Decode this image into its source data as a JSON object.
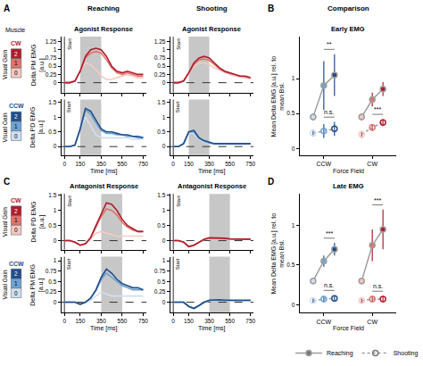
{
  "header": {
    "muscle": "Muscle",
    "columns": [
      "Reaching",
      "Shooting"
    ],
    "comparison": "Comparison"
  },
  "visual_gain": {
    "title": "Visual Gain",
    "levels": [
      2,
      1,
      0
    ]
  },
  "force_fields": {
    "CW": [
      "#f3c9c3",
      "#e0736a",
      "#b01c2e"
    ],
    "CCW": [
      "#cfe0f1",
      "#6fa3d3",
      "#1f4e8c"
    ]
  },
  "chart_data": [
    {
      "type": "line",
      "panel": "A",
      "title": "Agonist Response",
      "force_field": "CW",
      "y_label": "Delta PM EMG [a.u.]",
      "tick_labels": "y",
      "x": [
        0,
        50,
        100,
        150,
        200,
        250,
        300,
        350,
        400,
        450,
        500,
        550,
        600,
        650,
        700,
        750
      ],
      "xlim": [
        -30,
        780
      ],
      "xticks": [
        0,
        150,
        350,
        550,
        750
      ],
      "ylim": [
        -0.3,
        1.4
      ],
      "yticks": [
        0,
        0.25,
        0.5,
        0.75,
        1,
        1.25
      ],
      "window": [
        150,
        350
      ],
      "start": {
        "x": 0,
        "label": "Start"
      },
      "series": [
        {
          "gain": 0,
          "values": [
            0,
            0,
            0.05,
            0.35,
            0.6,
            0.55,
            0.4,
            0.2,
            0.1,
            0.1,
            0.15,
            0.2,
            0.25,
            0.2,
            0.15,
            0.15
          ]
        },
        {
          "gain": 1,
          "values": [
            0,
            0,
            0.05,
            0.35,
            0.75,
            0.9,
            0.95,
            0.9,
            0.7,
            0.45,
            0.3,
            0.25,
            0.3,
            0.25,
            0.2,
            0.2
          ]
        },
        {
          "gain": 2,
          "values": [
            0,
            0,
            0.05,
            0.35,
            0.8,
            1.0,
            1.05,
            1.0,
            0.8,
            0.5,
            0.35,
            0.3,
            0.35,
            0.3,
            0.25,
            0.25
          ]
        }
      ]
    },
    {
      "type": "line",
      "title": "Agonist Response",
      "force_field": "CW",
      "tick_labels": "y",
      "x": [
        0,
        50,
        100,
        150,
        200,
        250,
        300,
        350,
        400,
        450,
        500,
        550,
        600,
        650,
        700,
        750
      ],
      "xlim": [
        -30,
        780
      ],
      "xticks": [
        0,
        150,
        350,
        550,
        750
      ],
      "ylim": [
        -0.3,
        1.4
      ],
      "yticks": [
        0,
        0.25,
        0.5,
        0.75,
        1,
        1.25
      ],
      "window": [
        150,
        350
      ],
      "start": {
        "x": 0,
        "label": "Start"
      },
      "series": [
        {
          "gain": 0,
          "values": [
            0,
            0,
            0.05,
            0.3,
            0.5,
            0.6,
            0.6,
            0.55,
            0.45,
            0.38,
            0.3,
            0.25,
            0.2,
            0.18,
            0.15,
            0.12
          ]
        },
        {
          "gain": 1,
          "values": [
            0,
            0,
            0.05,
            0.3,
            0.55,
            0.7,
            0.72,
            0.68,
            0.55,
            0.42,
            0.33,
            0.28,
            0.23,
            0.2,
            0.18,
            0.15
          ]
        },
        {
          "gain": 2,
          "values": [
            0,
            0,
            0.05,
            0.3,
            0.6,
            0.75,
            0.8,
            0.75,
            0.6,
            0.45,
            0.35,
            0.3,
            0.25,
            0.2,
            0.2,
            0.15
          ]
        }
      ]
    },
    {
      "type": "line",
      "force_field": "CCW",
      "y_label": "Delta PD EMG [a.u.]",
      "x_label": "Time [ms]",
      "x": [
        0,
        50,
        100,
        150,
        200,
        250,
        300,
        350,
        400,
        450,
        500,
        550,
        600,
        650,
        700,
        750
      ],
      "xlim": [
        -30,
        780
      ],
      "xticks": [
        0,
        150,
        350,
        550,
        750
      ],
      "ylim": [
        -0.3,
        1.6
      ],
      "yticks": [
        0,
        0.5,
        1,
        1.5
      ],
      "window": [
        150,
        350
      ],
      "start": {
        "x": 0,
        "label": "Start"
      },
      "series": [
        {
          "gain": 0,
          "values": [
            0,
            0,
            0.05,
            0.6,
            1.0,
            0.7,
            0.4,
            0.3,
            0.3,
            0.3,
            0.3,
            0.3,
            0.3,
            0.25,
            0.25,
            0.25
          ]
        },
        {
          "gain": 1,
          "values": [
            0,
            0,
            0.05,
            0.6,
            1.25,
            1.1,
            0.8,
            0.55,
            0.45,
            0.45,
            0.4,
            0.4,
            0.35,
            0.35,
            0.3,
            0.3
          ]
        },
        {
          "gain": 2,
          "values": [
            0,
            0,
            0.05,
            0.6,
            1.3,
            1.2,
            0.9,
            0.6,
            0.5,
            0.5,
            0.45,
            0.4,
            0.4,
            0.35,
            0.35,
            0.3
          ]
        }
      ]
    },
    {
      "type": "line",
      "force_field": "CCW",
      "x_label": "Time [ms]",
      "x": [
        0,
        50,
        100,
        150,
        200,
        250,
        300,
        350,
        400,
        450,
        500,
        550,
        600,
        650,
        700,
        750
      ],
      "xlim": [
        -30,
        780
      ],
      "xticks": [
        0,
        150,
        350,
        550,
        750
      ],
      "ylim": [
        -0.3,
        1.6
      ],
      "yticks": [
        0,
        0.5,
        1,
        1.5
      ],
      "window": [
        150,
        350
      ],
      "start": {
        "x": 0,
        "label": "Start"
      },
      "series": [
        {
          "gain": 0,
          "values": [
            0,
            0,
            0.1,
            0.48,
            0.45,
            0.25,
            0.15,
            0.1,
            0.08,
            0.08,
            0.08,
            0.08,
            0.08,
            0.08,
            0.08,
            0.08
          ]
        },
        {
          "gain": 1,
          "values": [
            0,
            0,
            0.1,
            0.5,
            0.5,
            0.28,
            0.18,
            0.12,
            0.1,
            0.1,
            0.1,
            0.1,
            0.1,
            0.1,
            0.1,
            0.1
          ]
        },
        {
          "gain": 2,
          "values": [
            0,
            0,
            0.1,
            0.5,
            0.55,
            0.3,
            0.2,
            0.15,
            0.1,
            0.1,
            0.1,
            0.1,
            0.1,
            0.1,
            0.1,
            0.1
          ]
        }
      ]
    },
    {
      "type": "line",
      "panel": "C",
      "title": "Antagonist Response",
      "force_field": "CW",
      "y_label": "Delta PD EMG [a.u.]",
      "tick_labels": "y",
      "x": [
        0,
        50,
        100,
        150,
        200,
        250,
        300,
        350,
        400,
        450,
        500,
        550,
        600,
        650,
        700,
        750
      ],
      "xlim": [
        -30,
        780
      ],
      "xticks": [
        0,
        150,
        350,
        550,
        750
      ],
      "ylim": [
        -0.3,
        1.55
      ],
      "yticks": [
        0,
        0.5,
        1,
        1.5
      ],
      "window": [
        350,
        550
      ],
      "start": {
        "x": 0,
        "label": "Start"
      },
      "series": [
        {
          "gain": 0,
          "values": [
            0,
            0,
            -0.05,
            -0.15,
            -0.1,
            0.05,
            0.25,
            0.3,
            0.25,
            0.2,
            0.15,
            0.15,
            0.15,
            0.15,
            0.15,
            0.15
          ]
        },
        {
          "gain": 1,
          "values": [
            0,
            0,
            -0.05,
            -0.15,
            -0.1,
            0.1,
            0.45,
            0.8,
            1.05,
            1.0,
            0.85,
            0.6,
            0.45,
            0.35,
            0.3,
            0.3
          ]
        },
        {
          "gain": 2,
          "values": [
            0,
            0,
            -0.05,
            -0.15,
            -0.1,
            0.1,
            0.5,
            0.9,
            1.25,
            1.2,
            1.0,
            0.7,
            0.5,
            0.4,
            0.3,
            0.3
          ]
        }
      ]
    },
    {
      "type": "line",
      "title": "Antagonist Response",
      "force_field": "CW",
      "tick_labels": "y",
      "x": [
        0,
        50,
        100,
        150,
        200,
        250,
        300,
        350,
        400,
        450,
        500,
        550,
        600,
        650,
        700,
        750
      ],
      "xlim": [
        -30,
        780
      ],
      "xticks": [
        0,
        150,
        350,
        550,
        750
      ],
      "ylim": [
        -0.3,
        1.55
      ],
      "yticks": [
        0,
        0.5,
        1,
        1.5
      ],
      "window": [
        350,
        550
      ],
      "start": {
        "x": 0,
        "label": "Start"
      },
      "series": [
        {
          "gain": 0,
          "values": [
            0,
            0,
            -0.05,
            -0.18,
            -0.14,
            -0.05,
            0.03,
            0.06,
            0.06,
            0.06,
            0.05,
            0.04,
            0.04,
            0.04,
            0.04,
            0.04
          ]
        },
        {
          "gain": 1,
          "values": [
            0,
            0,
            -0.05,
            -0.2,
            -0.15,
            -0.05,
            0.04,
            0.08,
            0.08,
            0.08,
            0.06,
            0.05,
            0.05,
            0.04,
            0.04,
            0.04
          ]
        },
        {
          "gain": 2,
          "values": [
            0,
            0,
            -0.05,
            -0.2,
            -0.15,
            -0.05,
            0.05,
            0.1,
            0.1,
            0.1,
            0.08,
            0.06,
            0.05,
            0.05,
            0.05,
            0.05
          ]
        }
      ]
    },
    {
      "type": "line",
      "force_field": "CCW",
      "y_label": "Delta PM EMG [a.u.]",
      "x_label": "Time [ms]",
      "x": [
        0,
        50,
        100,
        150,
        200,
        250,
        300,
        350,
        400,
        450,
        500,
        550,
        600,
        650,
        700,
        750
      ],
      "xlim": [
        -30,
        780
      ],
      "xticks": [
        0,
        150,
        350,
        550,
        750
      ],
      "ylim": [
        -0.25,
        1.1
      ],
      "yticks": [
        0,
        0.25,
        0.5,
        0.75,
        1
      ],
      "window": [
        350,
        550
      ],
      "start": {
        "x": 0,
        "label": "Start"
      },
      "series": [
        {
          "gain": 0,
          "values": [
            0,
            0,
            0,
            -0.05,
            0,
            0.05,
            0.15,
            0.25,
            0.2,
            0.15,
            0.15,
            0.15,
            0.15,
            0.15,
            0.15,
            0.15
          ]
        },
        {
          "gain": 1,
          "values": [
            0,
            0,
            0,
            -0.05,
            0,
            0.1,
            0.28,
            0.55,
            0.7,
            0.6,
            0.5,
            0.4,
            0.35,
            0.3,
            0.3,
            0.3
          ]
        },
        {
          "gain": 2,
          "values": [
            0,
            0,
            0,
            -0.05,
            0,
            0.1,
            0.3,
            0.6,
            0.8,
            0.7,
            0.55,
            0.45,
            0.4,
            0.35,
            0.35,
            0.3
          ]
        }
      ]
    },
    {
      "type": "line",
      "force_field": "CCW",
      "x_label": "Time [ms]",
      "x": [
        0,
        50,
        100,
        150,
        200,
        250,
        300,
        350,
        400,
        450,
        500,
        550,
        600,
        650,
        700,
        750
      ],
      "xlim": [
        -30,
        780
      ],
      "xticks": [
        0,
        150,
        350,
        550,
        750
      ],
      "ylim": [
        -0.25,
        1.1
      ],
      "yticks": [
        0,
        0.25,
        0.5,
        0.75,
        1
      ],
      "window": [
        350,
        550
      ],
      "start": {
        "x": 0,
        "label": "Start"
      },
      "series": [
        {
          "gain": 0,
          "values": [
            0,
            0,
            0,
            -0.1,
            -0.14,
            -0.08,
            -0.01,
            0.03,
            0.04,
            0.04,
            0.04,
            0.03,
            0.03,
            0.03,
            0.03,
            0.03
          ]
        },
        {
          "gain": 1,
          "values": [
            0,
            0,
            0,
            -0.1,
            -0.15,
            -0.08,
            0,
            0.04,
            0.05,
            0.05,
            0.04,
            0.04,
            0.04,
            0.04,
            0.04,
            0.04
          ]
        },
        {
          "gain": 2,
          "values": [
            0,
            0,
            0,
            -0.1,
            -0.15,
            -0.08,
            0,
            0.05,
            0.06,
            0.06,
            0.05,
            0.05,
            0.05,
            0.05,
            0.05,
            0.05
          ]
        }
      ]
    },
    {
      "type": "scatter",
      "panel": "B",
      "title": "Early EMG",
      "x_label": "Force Field",
      "y_label": "Mean Delta EMG [a.u.] rel. to mean Bsl.",
      "categories": [
        "CCW",
        "CW"
      ],
      "gains": [
        0,
        1,
        2
      ],
      "ylim": [
        -0.1,
        1.6
      ],
      "yticks": [
        0,
        0.5,
        1
      ],
      "series": [
        {
          "name": "Reaching",
          "marker": "filled",
          "line_style": "solid",
          "values": [
            [
              0.45,
              0.9,
              1.05
            ],
            [
              0.45,
              0.7,
              0.85
            ]
          ],
          "errors": [
            [
              0.05,
              0.35,
              0.3
            ],
            [
              0.05,
              0.1,
              0.1
            ]
          ]
        },
        {
          "name": "Shooting",
          "marker": "open",
          "line_style": "dotted",
          "values": [
            [
              0.22,
              0.25,
              0.28
            ],
            [
              0.2,
              0.3,
              0.37
            ]
          ],
          "errors": [
            [
              0.05,
              0.1,
              0.1
            ],
            [
              0.05,
              0.05,
              0.05
            ]
          ]
        }
      ],
      "significance": [
        {
          "category": "CCW",
          "series": "Reaching",
          "label": "**"
        },
        {
          "category": "CCW",
          "series": "Shooting",
          "label": "n.s."
        },
        {
          "category": "CW",
          "series": "Shooting",
          "label": "***"
        }
      ]
    },
    {
      "type": "scatter",
      "panel": "D",
      "title": "Late EMG",
      "x_label": "Force Field",
      "y_label": "Mean Delta EMG [a.u.] rel. to mean Bsl.",
      "categories": [
        "CCW",
        "CW"
      ],
      "gains": [
        0,
        1,
        2
      ],
      "ylim": [
        -0.1,
        1.4
      ],
      "yticks": [
        0,
        0.5,
        1
      ],
      "legend": "bottom",
      "series": [
        {
          "name": "Reaching",
          "marker": "filled",
          "line_style": "solid",
          "values": [
            [
              0.3,
              0.55,
              0.7
            ],
            [
              0.3,
              0.75,
              0.95
            ]
          ],
          "errors": [
            [
              0.04,
              0.07,
              0.08
            ],
            [
              0.04,
              0.2,
              0.25
            ]
          ]
        },
        {
          "name": "Shooting",
          "marker": "open",
          "line_style": "dotted",
          "values": [
            [
              0.05,
              0.07,
              0.08
            ],
            [
              0.05,
              0.07,
              0.07
            ]
          ],
          "errors": [
            [
              0.03,
              0.04,
              0.04
            ],
            [
              0.03,
              0.04,
              0.04
            ]
          ]
        }
      ],
      "significance": [
        {
          "category": "CCW",
          "series": "Reaching",
          "label": "***"
        },
        {
          "category": "CW",
          "series": "Reaching",
          "label": "***"
        },
        {
          "category": "CCW",
          "series": "Shooting",
          "label": "n.s."
        },
        {
          "category": "CW",
          "series": "Shooting",
          "label": "n.s."
        }
      ]
    }
  ]
}
